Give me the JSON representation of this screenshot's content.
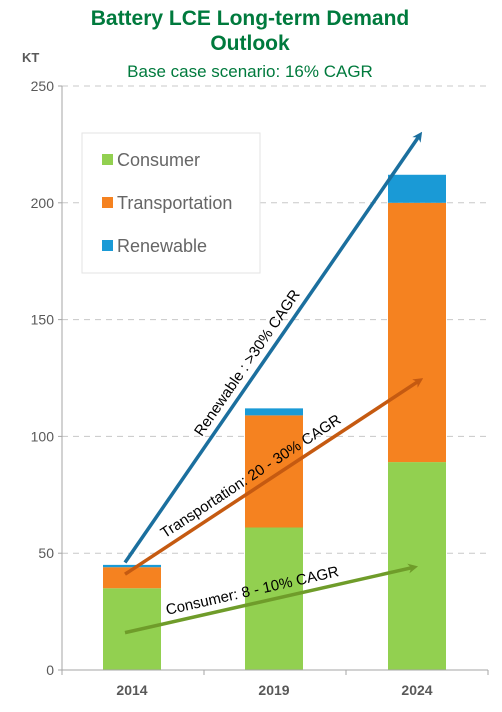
{
  "chart_data": {
    "type": "bar",
    "stacked": true,
    "title": "Battery LCE Long-term Demand Outlook",
    "subtitle": "Base case scenario: 16% CAGR",
    "ylabel": "KT",
    "categories": [
      "2014",
      "2019",
      "2024"
    ],
    "series": [
      {
        "name": "Consumer",
        "color": "#92d050",
        "values": [
          35,
          61,
          89
        ]
      },
      {
        "name": "Transportation",
        "color": "#f58220",
        "values": [
          9,
          48,
          111
        ]
      },
      {
        "name": "Renewable",
        "color": "#1a9ad6",
        "values": [
          1,
          3,
          12
        ]
      }
    ],
    "ylim": [
      0,
      250
    ],
    "yticks": [
      0,
      50,
      100,
      150,
      200,
      250
    ],
    "grid": true,
    "legend": "top-left",
    "annotations": [
      {
        "text": "Renewable : >30% CAGR",
        "color": "#1b6f9e",
        "from": [
          0,
          46
        ],
        "to": [
          2.02,
          229
        ]
      },
      {
        "text": "Transportation: 20 - 30% CAGR",
        "color": "#c55a11",
        "from": [
          0,
          41
        ],
        "to": [
          2.02,
          124
        ]
      },
      {
        "text": "Consumer: 8 - 10% CAGR",
        "color": "#6f9c2a",
        "from": [
          0,
          16
        ],
        "to": [
          1.98,
          44
        ]
      }
    ]
  }
}
